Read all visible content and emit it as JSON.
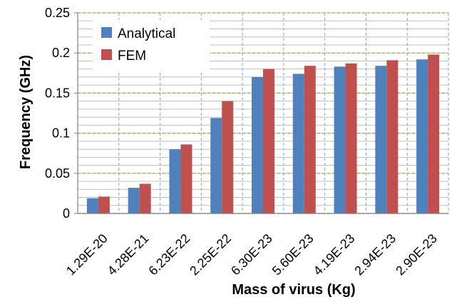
{
  "chart_data": {
    "type": "bar",
    "categories": [
      "1.29E-20",
      "4.28E-21",
      "6.23E-22",
      "2.25E-22",
      "6.30E-23",
      "5.60E-23",
      "4.19E-23",
      "2.94E-23",
      "2.90E-23"
    ],
    "series": [
      {
        "name": "Analytical",
        "color": "#4F81BD",
        "values": [
          0.019,
          0.032,
          0.08,
          0.119,
          0.17,
          0.174,
          0.183,
          0.184,
          0.192
        ]
      },
      {
        "name": "FEM",
        "color": "#C0504D",
        "values": [
          0.021,
          0.037,
          0.086,
          0.14,
          0.18,
          0.184,
          0.187,
          0.191,
          0.198
        ]
      }
    ],
    "xlabel": "Mass of virus (Kg)",
    "ylabel": "Frequency (GHz)",
    "ylim": [
      0,
      0.25
    ],
    "yticks": [
      "0",
      "0.05",
      "0.1",
      "0.15",
      "0.2",
      "0.25"
    ],
    "grid": true,
    "legend_position": "top-left"
  }
}
